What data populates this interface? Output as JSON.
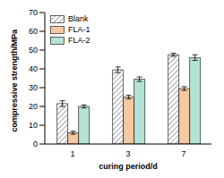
{
  "chart_data": {
    "type": "bar",
    "categories": [
      "1",
      "3",
      "7"
    ],
    "x_label": "curing period/d",
    "y_label": "compressive strength/MPa",
    "ylim": [
      0,
      70
    ],
    "yticks": [
      0,
      10,
      20,
      30,
      40,
      50,
      60,
      70
    ],
    "grid": false,
    "legend": "upper left",
    "series": [
      {
        "name": "Blank",
        "color": "#7f7f7f",
        "values": [
          21.5,
          39.5,
          47.5
        ],
        "errors": [
          1.5,
          1.5,
          0.8
        ]
      },
      {
        "name": "FLA-1",
        "color": "#f5c9a2",
        "values": [
          6,
          25,
          29.5
        ],
        "errors": [
          0.8,
          1.0,
          1.0
        ]
      },
      {
        "name": "FLA-2",
        "color": "#b5e2d6",
        "values": [
          20,
          34.5,
          46
        ],
        "errors": [
          0.8,
          1.2,
          1.5
        ]
      }
    ]
  }
}
